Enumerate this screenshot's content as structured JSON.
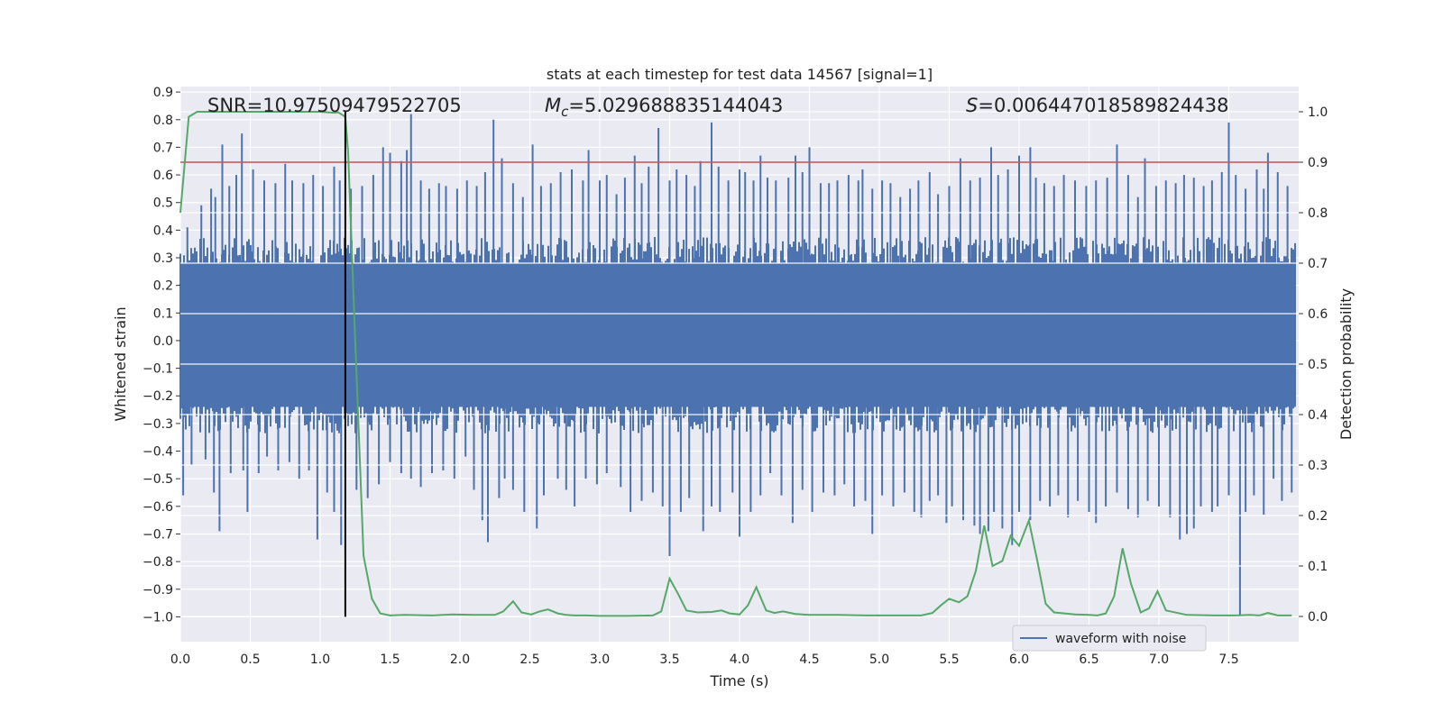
{
  "chart_data": {
    "type": "line",
    "title": "stats at each timestep for test data 14567 [signal=1]",
    "xlabel": "Time (s)",
    "ylabel": "Whitened strain",
    "y2label": "Detection probability",
    "xlim": [
      0.0,
      8.0
    ],
    "ylim": [
      -1.09,
      0.92
    ],
    "y2lim": [
      -0.05,
      1.05
    ],
    "xticks": [
      0.0,
      0.5,
      1.0,
      1.5,
      2.0,
      2.5,
      3.0,
      3.5,
      4.0,
      4.5,
      5.0,
      5.5,
      6.0,
      6.5,
      7.0,
      7.5
    ],
    "yticks": [
      0.9,
      0.8,
      0.7,
      0.6,
      0.5,
      0.4,
      0.3,
      0.2,
      0.1,
      0.0,
      -0.1,
      -0.2,
      -0.3,
      -0.4,
      -0.5,
      -0.6,
      -0.7,
      -0.8,
      -0.9,
      -1.0
    ],
    "y2ticks": [
      1.0,
      0.9,
      0.8,
      0.7,
      0.6,
      0.5,
      0.4,
      0.3,
      0.2,
      0.1,
      0.0
    ],
    "annotations": {
      "snr": "SNR=10.97509479522705",
      "mc_symbol": "M",
      "mc_sub": "c",
      "mc_value": "=5.029688835144043",
      "s_symbol": "S",
      "s_value": "=0.006447018589824438"
    },
    "legend": {
      "label": "waveform with noise",
      "placement": "lower-right"
    },
    "threshold": {
      "value": 0.9,
      "axis": "right",
      "color": "#c44e52"
    },
    "merger_time": 1.18,
    "waveform": {
      "name": "waveform with noise",
      "color": "#4c72b0",
      "band_lo": -0.24,
      "band_hi": 0.28,
      "spikes_up": [
        [
          0.05,
          0.41
        ],
        [
          0.15,
          0.49
        ],
        [
          0.22,
          0.55
        ],
        [
          0.25,
          0.52
        ],
        [
          0.3,
          0.71
        ],
        [
          0.35,
          0.56
        ],
        [
          0.4,
          0.6
        ],
        [
          0.44,
          0.75
        ],
        [
          0.52,
          0.62
        ],
        [
          0.6,
          0.58
        ],
        [
          0.68,
          0.57
        ],
        [
          0.75,
          0.64
        ],
        [
          0.8,
          0.58
        ],
        [
          0.88,
          0.57
        ],
        [
          0.95,
          0.6
        ],
        [
          1.02,
          0.56
        ],
        [
          1.1,
          0.63
        ],
        [
          1.14,
          0.58
        ],
        [
          1.22,
          0.55
        ],
        [
          1.3,
          0.56
        ],
        [
          1.38,
          0.6
        ],
        [
          1.45,
          0.7
        ],
        [
          1.5,
          0.68
        ],
        [
          1.58,
          0.65
        ],
        [
          1.62,
          0.69
        ],
        [
          1.65,
          0.82
        ],
        [
          1.72,
          0.58
        ],
        [
          1.78,
          0.55
        ],
        [
          1.85,
          0.57
        ],
        [
          1.9,
          0.56
        ],
        [
          1.98,
          0.55
        ],
        [
          2.05,
          0.58
        ],
        [
          2.12,
          0.56
        ],
        [
          2.18,
          0.61
        ],
        [
          2.24,
          0.8
        ],
        [
          2.3,
          0.66
        ],
        [
          2.38,
          0.57
        ],
        [
          2.45,
          0.52
        ],
        [
          2.52,
          0.71
        ],
        [
          2.58,
          0.56
        ],
        [
          2.65,
          0.57
        ],
        [
          2.72,
          0.61
        ],
        [
          2.8,
          0.62
        ],
        [
          2.88,
          0.58
        ],
        [
          2.92,
          0.69
        ],
        [
          3.0,
          0.58
        ],
        [
          3.05,
          0.6
        ],
        [
          3.12,
          0.53
        ],
        [
          3.18,
          0.59
        ],
        [
          3.25,
          0.67
        ],
        [
          3.3,
          0.57
        ],
        [
          3.35,
          0.63
        ],
        [
          3.42,
          0.77
        ],
        [
          3.5,
          0.58
        ],
        [
          3.55,
          0.62
        ],
        [
          3.62,
          0.6
        ],
        [
          3.68,
          0.56
        ],
        [
          3.72,
          0.65
        ],
        [
          3.8,
          0.79
        ],
        [
          3.85,
          0.63
        ],
        [
          3.92,
          0.58
        ],
        [
          4.0,
          0.62
        ],
        [
          4.04,
          0.61
        ],
        [
          4.1,
          0.58
        ],
        [
          4.15,
          0.67
        ],
        [
          4.2,
          0.59
        ],
        [
          4.26,
          0.58
        ],
        [
          4.35,
          0.59
        ],
        [
          4.4,
          0.67
        ],
        [
          4.45,
          0.61
        ],
        [
          4.5,
          0.7
        ],
        [
          4.58,
          0.57
        ],
        [
          4.64,
          0.57
        ],
        [
          4.7,
          0.58
        ],
        [
          4.78,
          0.6
        ],
        [
          4.85,
          0.58
        ],
        [
          4.88,
          0.62
        ],
        [
          4.95,
          0.55
        ],
        [
          5.02,
          0.58
        ],
        [
          5.08,
          0.57
        ],
        [
          5.15,
          0.52
        ],
        [
          5.22,
          0.55
        ],
        [
          5.28,
          0.58
        ],
        [
          5.36,
          0.61
        ],
        [
          5.42,
          0.53
        ],
        [
          5.5,
          0.56
        ],
        [
          5.58,
          0.66
        ],
        [
          5.65,
          0.58
        ],
        [
          5.72,
          0.59
        ],
        [
          5.8,
          0.7
        ],
        [
          5.85,
          0.6
        ],
        [
          5.92,
          0.62
        ],
        [
          6.0,
          0.67
        ],
        [
          6.08,
          0.7
        ],
        [
          6.12,
          0.59
        ],
        [
          6.18,
          0.57
        ],
        [
          6.25,
          0.56
        ],
        [
          6.32,
          0.6
        ],
        [
          6.4,
          0.58
        ],
        [
          6.48,
          0.56
        ],
        [
          6.55,
          0.58
        ],
        [
          6.63,
          0.59
        ],
        [
          6.7,
          0.71
        ],
        [
          6.78,
          0.6
        ],
        [
          6.85,
          0.52
        ],
        [
          6.9,
          0.66
        ],
        [
          6.98,
          0.56
        ],
        [
          7.05,
          0.58
        ],
        [
          7.12,
          0.57
        ],
        [
          7.18,
          0.6
        ],
        [
          7.25,
          0.59
        ],
        [
          7.32,
          0.56
        ],
        [
          7.38,
          0.58
        ],
        [
          7.45,
          0.61
        ],
        [
          7.5,
          0.79
        ],
        [
          7.55,
          0.6
        ],
        [
          7.62,
          0.55
        ],
        [
          7.7,
          0.62
        ],
        [
          7.75,
          0.55
        ],
        [
          7.78,
          0.68
        ],
        [
          7.85,
          0.61
        ],
        [
          7.92,
          0.56
        ]
      ],
      "spikes_down": [
        [
          0.02,
          -0.56
        ],
        [
          0.08,
          -0.45
        ],
        [
          0.18,
          -0.43
        ],
        [
          0.24,
          -0.55
        ],
        [
          0.28,
          -0.69
        ],
        [
          0.36,
          -0.48
        ],
        [
          0.45,
          -0.47
        ],
        [
          0.48,
          -0.62
        ],
        [
          0.56,
          -0.48
        ],
        [
          0.62,
          -0.42
        ],
        [
          0.7,
          -0.47
        ],
        [
          0.78,
          -0.44
        ],
        [
          0.85,
          -0.5
        ],
        [
          0.92,
          -0.47
        ],
        [
          0.98,
          -0.72
        ],
        [
          1.05,
          -0.55
        ],
        [
          1.1,
          -0.62
        ],
        [
          1.15,
          -0.74
        ],
        [
          1.26,
          -0.54
        ],
        [
          1.34,
          -0.57
        ],
        [
          1.42,
          -0.52
        ],
        [
          1.5,
          -0.44
        ],
        [
          1.58,
          -0.48
        ],
        [
          1.65,
          -0.5
        ],
        [
          1.72,
          -0.53
        ],
        [
          1.8,
          -0.48
        ],
        [
          1.88,
          -0.47
        ],
        [
          1.96,
          -0.5
        ],
        [
          2.04,
          -0.42
        ],
        [
          2.1,
          -0.54
        ],
        [
          2.16,
          -0.65
        ],
        [
          2.2,
          -0.73
        ],
        [
          2.28,
          -0.57
        ],
        [
          2.32,
          -0.5
        ],
        [
          2.38,
          -0.54
        ],
        [
          2.46,
          -0.62
        ],
        [
          2.55,
          -0.68
        ],
        [
          2.6,
          -0.56
        ],
        [
          2.7,
          -0.5
        ],
        [
          2.76,
          -0.54
        ],
        [
          2.82,
          -0.6
        ],
        [
          2.9,
          -0.5
        ],
        [
          2.98,
          -0.52
        ],
        [
          3.05,
          -0.48
        ],
        [
          3.15,
          -0.53
        ],
        [
          3.22,
          -0.62
        ],
        [
          3.3,
          -0.58
        ],
        [
          3.38,
          -0.55
        ],
        [
          3.45,
          -0.6
        ],
        [
          3.5,
          -0.78
        ],
        [
          3.58,
          -0.62
        ],
        [
          3.64,
          -0.57
        ],
        [
          3.74,
          -0.69
        ],
        [
          3.8,
          -0.6
        ],
        [
          3.86,
          -0.62
        ],
        [
          3.95,
          -0.55
        ],
        [
          4.0,
          -0.71
        ],
        [
          4.08,
          -0.62
        ],
        [
          4.15,
          -0.56
        ],
        [
          4.22,
          -0.48
        ],
        [
          4.3,
          -0.56
        ],
        [
          4.38,
          -0.66
        ],
        [
          4.45,
          -0.54
        ],
        [
          4.52,
          -0.62
        ],
        [
          4.6,
          -0.55
        ],
        [
          4.68,
          -0.56
        ],
        [
          4.75,
          -0.52
        ],
        [
          4.82,
          -0.6
        ],
        [
          4.9,
          -0.58
        ],
        [
          4.95,
          -0.7
        ],
        [
          5.02,
          -0.56
        ],
        [
          5.1,
          -0.6
        ],
        [
          5.18,
          -0.55
        ],
        [
          5.25,
          -0.62
        ],
        [
          5.3,
          -0.64
        ],
        [
          5.36,
          -0.58
        ],
        [
          5.42,
          -0.56
        ],
        [
          5.48,
          -0.66
        ],
        [
          5.52,
          -0.6
        ],
        [
          5.6,
          -0.65
        ],
        [
          5.68,
          -0.67
        ],
        [
          5.72,
          -0.7
        ],
        [
          5.78,
          -0.69
        ],
        [
          5.82,
          -0.62
        ],
        [
          5.88,
          -0.68
        ],
        [
          5.95,
          -0.74
        ],
        [
          6.0,
          -0.62
        ],
        [
          6.08,
          -0.65
        ],
        [
          6.15,
          -0.58
        ],
        [
          6.22,
          -0.6
        ],
        [
          6.28,
          -0.56
        ],
        [
          6.35,
          -0.64
        ],
        [
          6.42,
          -0.58
        ],
        [
          6.5,
          -0.62
        ],
        [
          6.55,
          -0.66
        ],
        [
          6.62,
          -0.6
        ],
        [
          6.7,
          -0.55
        ],
        [
          6.78,
          -0.61
        ],
        [
          6.85,
          -0.64
        ],
        [
          6.92,
          -0.58
        ],
        [
          7.0,
          -0.6
        ],
        [
          7.08,
          -0.64
        ],
        [
          7.15,
          -0.72
        ],
        [
          7.2,
          -0.7
        ],
        [
          7.25,
          -0.68
        ],
        [
          7.3,
          -0.6
        ],
        [
          7.38,
          -0.62
        ],
        [
          7.42,
          -0.6
        ],
        [
          7.5,
          -0.56
        ],
        [
          7.58,
          -1.0
        ],
        [
          7.62,
          -0.62
        ],
        [
          7.68,
          -0.56
        ],
        [
          7.75,
          -0.63
        ],
        [
          7.82,
          -0.5
        ],
        [
          7.88,
          -0.58
        ],
        [
          7.95,
          -0.55
        ]
      ]
    },
    "detection_probability": {
      "name": "detection probability",
      "color": "#55a868",
      "x": [
        0.0,
        0.06,
        0.12,
        0.18,
        0.3,
        0.5,
        0.7,
        0.9,
        1.0,
        1.1,
        1.13,
        1.18,
        1.2,
        1.25,
        1.31,
        1.37,
        1.43,
        1.5,
        1.6,
        1.8,
        1.95,
        2.1,
        2.25,
        2.31,
        2.38,
        2.44,
        2.51,
        2.57,
        2.63,
        2.7,
        2.76,
        2.82,
        2.9,
        3.0,
        3.2,
        3.38,
        3.44,
        3.5,
        3.56,
        3.62,
        3.7,
        3.8,
        3.87,
        3.93,
        4.0,
        4.06,
        4.12,
        4.19,
        4.25,
        4.31,
        4.4,
        4.5,
        4.7,
        4.9,
        5.1,
        5.3,
        5.38,
        5.44,
        5.5,
        5.57,
        5.63,
        5.69,
        5.75,
        5.81,
        5.88,
        5.94,
        6.0,
        6.07,
        6.13,
        6.19,
        6.25,
        6.4,
        6.5,
        6.56,
        6.62,
        6.68,
        6.74,
        6.8,
        6.87,
        6.93,
        6.99,
        7.05,
        7.2,
        7.4,
        7.55,
        7.65,
        7.72,
        7.78,
        7.85,
        7.95
      ],
      "y": [
        0.8,
        0.99,
        1.0,
        1.0,
        1.0,
        1.0,
        1.0,
        1.0,
        1.0,
        0.998,
        0.999,
        0.99,
        0.92,
        0.55,
        0.12,
        0.035,
        0.006,
        0.002,
        0.003,
        0.002,
        0.004,
        0.003,
        0.003,
        0.01,
        0.03,
        0.008,
        0.004,
        0.01,
        0.014,
        0.006,
        0.003,
        0.002,
        0.002,
        0.001,
        0.001,
        0.002,
        0.01,
        0.075,
        0.045,
        0.012,
        0.008,
        0.009,
        0.012,
        0.006,
        0.004,
        0.022,
        0.058,
        0.012,
        0.007,
        0.01,
        0.005,
        0.003,
        0.003,
        0.002,
        0.002,
        0.002,
        0.007,
        0.022,
        0.035,
        0.028,
        0.04,
        0.09,
        0.18,
        0.1,
        0.11,
        0.16,
        0.14,
        0.19,
        0.11,
        0.025,
        0.008,
        0.004,
        0.003,
        0.002,
        0.006,
        0.04,
        0.135,
        0.065,
        0.008,
        0.016,
        0.05,
        0.012,
        0.003,
        0.002,
        0.002,
        0.003,
        0.002,
        0.007,
        0.002,
        0.002
      ]
    }
  }
}
